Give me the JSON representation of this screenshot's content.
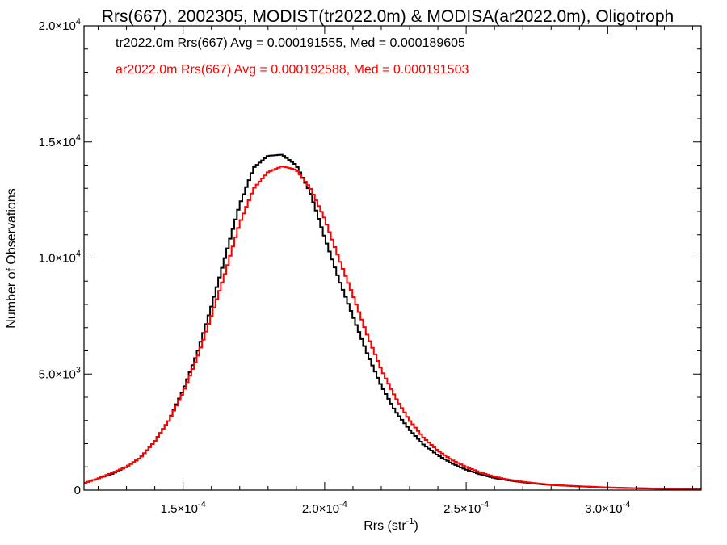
{
  "chart_data": {
    "type": "line",
    "title": "Rrs(667), 2002305, MODIST(tr2022.0m) & MODISA(ar2022.0m), Oligotroph",
    "xlabel": {
      "base": "Rrs (str",
      "sup": "-1",
      "close": ")"
    },
    "ylabel": "Number of Observations",
    "xlim": [
      0.000115,
      0.000333
    ],
    "ylim": [
      0,
      20000
    ],
    "x_ticks": [
      {
        "value": 0.00015,
        "mant": "1.5×10",
        "exp": "-4"
      },
      {
        "value": 0.0002,
        "mant": "2.0×10",
        "exp": "-4"
      },
      {
        "value": 0.00025,
        "mant": "2.5×10",
        "exp": "-4"
      },
      {
        "value": 0.0003,
        "mant": "3.0×10",
        "exp": "-4"
      }
    ],
    "y_ticks": [
      {
        "value": 0,
        "mant": "0",
        "exp": ""
      },
      {
        "value": 5000,
        "mant": "5.0×10",
        "exp": "3"
      },
      {
        "value": 10000,
        "mant": "1.0×10",
        "exp": "4"
      },
      {
        "value": 15000,
        "mant": "1.5×10",
        "exp": "4"
      },
      {
        "value": 20000,
        "mant": "2.0×10",
        "exp": "4"
      }
    ],
    "grid": false,
    "legend": [
      "tr2022.0m Rrs(667) Avg = 0.000191555, Med = 0.000189605",
      "ar2022.0m Rrs(667) Avg = 0.000192588, Med = 0.000191503"
    ],
    "series": [
      {
        "color": "#000000",
        "x": [
          0.000115,
          0.00012,
          0.000125,
          0.00013,
          0.000135,
          0.00014,
          0.000145,
          0.00015,
          0.000155,
          0.00016,
          0.000165,
          0.00017,
          0.000175,
          0.00018,
          0.000185,
          0.00019,
          0.000195,
          0.0002,
          0.000205,
          0.00021,
          0.000215,
          0.00022,
          0.000225,
          0.00023,
          0.000235,
          0.00024,
          0.000245,
          0.00025,
          0.000255,
          0.00026,
          0.000265,
          0.00027,
          0.000275,
          0.00028,
          0.00029,
          0.0003,
          0.00031,
          0.00032,
          0.000333
        ],
        "y": [
          300,
          500,
          700,
          1000,
          1400,
          2100,
          3000,
          4300,
          5900,
          7900,
          10100,
          12300,
          13900,
          14400,
          14450,
          14000,
          12800,
          10900,
          9100,
          7500,
          5900,
          4500,
          3400,
          2600,
          1950,
          1500,
          1150,
          880,
          680,
          520,
          420,
          340,
          270,
          220,
          160,
          110,
          80,
          55,
          30
        ]
      },
      {
        "color": "#ff0000",
        "x": [
          0.000115,
          0.00012,
          0.000125,
          0.00013,
          0.000135,
          0.00014,
          0.000145,
          0.00015,
          0.000155,
          0.00016,
          0.000165,
          0.00017,
          0.000175,
          0.00018,
          0.000185,
          0.00019,
          0.000195,
          0.0002,
          0.000205,
          0.00021,
          0.000215,
          0.00022,
          0.000225,
          0.00023,
          0.000235,
          0.00024,
          0.000245,
          0.00025,
          0.000255,
          0.00026,
          0.000265,
          0.00027,
          0.000275,
          0.00028,
          0.00029,
          0.0003,
          0.00031,
          0.00032,
          0.000333
        ],
        "y": [
          300,
          500,
          750,
          1000,
          1400,
          2100,
          3000,
          4200,
          5700,
          7500,
          9400,
          11500,
          13000,
          13700,
          13950,
          13800,
          13000,
          11700,
          10000,
          8400,
          6700,
          5200,
          4000,
          3000,
          2250,
          1700,
          1300,
          1000,
          760,
          580,
          450,
          360,
          290,
          230,
          165,
          115,
          85,
          60,
          35
        ]
      }
    ]
  }
}
